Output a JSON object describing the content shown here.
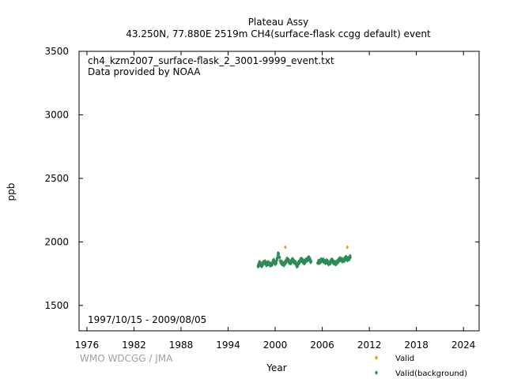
{
  "chart_data": {
    "type": "scatter",
    "title": "Plateau Assy",
    "subtitle": "43.250N, 77.880E 2519m    CH4(surface-flask ccgg default) event",
    "xlabel": "Year",
    "ylabel": "ppb",
    "xlim": [
      1975.0,
      2026.0
    ],
    "ylim": [
      1300,
      3500
    ],
    "xticks": [
      1976,
      1982,
      1988,
      1994,
      2000,
      2006,
      2012,
      2018,
      2024
    ],
    "yticks": [
      1500,
      2000,
      2500,
      3000,
      3500
    ],
    "annotations": {
      "file": "ch4_kzm2007_surface-flask_2_3001-9999_event.txt",
      "provider": "Data provided by NOAA",
      "period": "1997/10/15 - 2009/08/05"
    },
    "credit": "WMO WDCGG / JMA",
    "legend": {
      "position": "bottom-right"
    },
    "series": [
      {
        "name": "Valid",
        "color": "#e8a000",
        "marker": "diamond",
        "x": [
          2001.3,
          2009.2
        ],
        "y": [
          1958,
          1958
        ]
      },
      {
        "name": "Valid(background)",
        "color": "#2e8b57",
        "marker": "diamond",
        "x": [
          1997.8,
          1998.0,
          1998.3,
          1998.6,
          1998.9,
          1999.2,
          1999.5,
          1999.8,
          2000.1,
          2000.4,
          2000.7,
          2001.0,
          2001.3,
          2001.6,
          2001.9,
          2002.2,
          2002.5,
          2002.8,
          2003.1,
          2003.4,
          2003.7,
          2004.0,
          2004.3,
          2004.6,
          2005.4,
          2005.7,
          2006.0,
          2006.3,
          2006.6,
          2006.9,
          2007.2,
          2007.5,
          2007.8,
          2008.1,
          2008.4,
          2008.7,
          2009.0,
          2009.3,
          2009.6
        ],
        "y": [
          1808,
          1832,
          1818,
          1842,
          1826,
          1836,
          1816,
          1850,
          1828,
          1908,
          1846,
          1822,
          1838,
          1868,
          1830,
          1856,
          1842,
          1814,
          1848,
          1862,
          1836,
          1858,
          1872,
          1846,
          1834,
          1848,
          1860,
          1840,
          1846,
          1830,
          1852,
          1842,
          1826,
          1858,
          1866,
          1850,
          1872,
          1864,
          1878
        ]
      }
    ]
  }
}
